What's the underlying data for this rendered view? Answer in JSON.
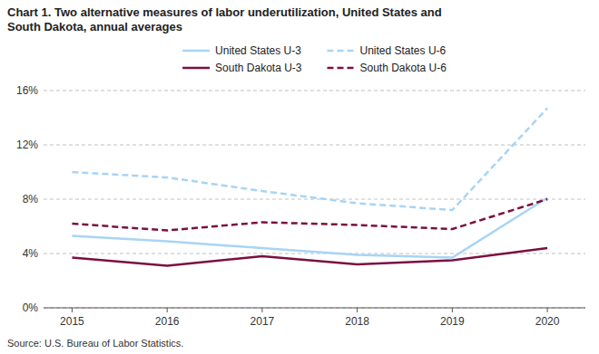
{
  "chart_data": {
    "type": "line",
    "title": [
      "Chart 1. Two alternative measures of labor underutilization, United States and",
      "South Dakota, annual averages"
    ],
    "annotations": [
      "Source: U.S. Bureau of Labor Statistics."
    ],
    "x": [
      2015,
      2016,
      2017,
      2018,
      2019,
      2020
    ],
    "xlim": [
      2014.7,
      2020.4
    ],
    "xticks": [
      2015,
      2016,
      2017,
      2018,
      2019,
      2020
    ],
    "ylim": [
      0,
      16
    ],
    "yticks": [
      {
        "value": 0,
        "label": "0%"
      },
      {
        "value": 4,
        "label": "4%"
      },
      {
        "value": 8,
        "label": "8%"
      },
      {
        "value": 12,
        "label": "12%"
      },
      {
        "value": 16,
        "label": "16%"
      }
    ],
    "grid": true,
    "legend": "top",
    "series": [
      {
        "name": "United States U-3",
        "color": "#a8d4f5",
        "line_style": "solid",
        "values": [
          5.3,
          4.9,
          4.4,
          3.9,
          3.7,
          8.1
        ]
      },
      {
        "name": "United States U-6",
        "color": "#a8d4f5",
        "line_style": "dashed",
        "values": [
          10.0,
          9.6,
          8.6,
          7.7,
          7.2,
          14.7
        ]
      },
      {
        "name": "South Dakota U-3",
        "color": "#7b1040",
        "line_style": "solid",
        "values": [
          3.7,
          3.1,
          3.8,
          3.2,
          3.5,
          4.4
        ]
      },
      {
        "name": "South Dakota U-6",
        "color": "#7b1040",
        "line_style": "dashed",
        "values": [
          6.2,
          5.7,
          6.3,
          6.1,
          5.8,
          8.0
        ]
      }
    ]
  }
}
